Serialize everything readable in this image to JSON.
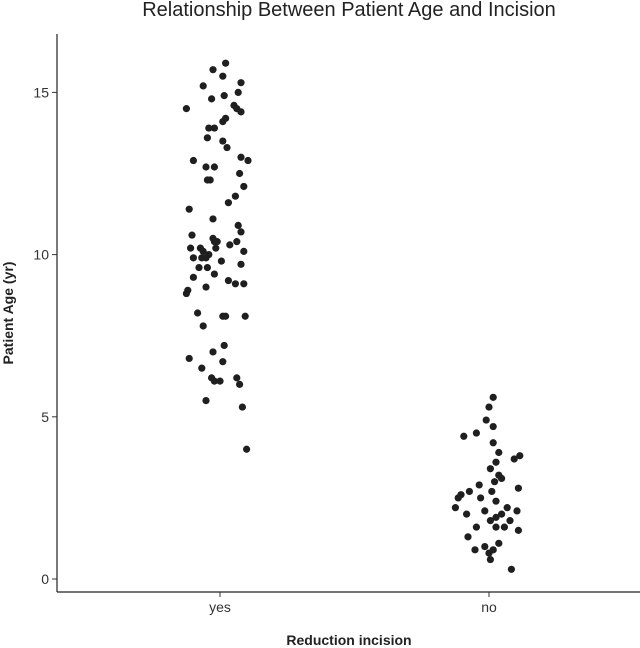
{
  "chart_data": {
    "type": "scatter",
    "title": "Relationship Between Patient Age and Incision",
    "xlabel": "Reduction incision",
    "ylabel": "Patient Age (yr)",
    "categories": [
      "yes",
      "no"
    ],
    "ylim": [
      -0.4,
      16.8
    ],
    "yticks": [
      0,
      5,
      10,
      15
    ],
    "grid": false,
    "legend": "none",
    "point_color": "#1f1f1f",
    "series": [
      {
        "category": "yes",
        "points": [
          {
            "jitter": 0.04,
            "y": 15.9
          },
          {
            "jitter": -0.05,
            "y": 15.7
          },
          {
            "jitter": 0.02,
            "y": 15.5
          },
          {
            "jitter": 0.15,
            "y": 15.3
          },
          {
            "jitter": -0.12,
            "y": 15.2
          },
          {
            "jitter": 0.13,
            "y": 15.0
          },
          {
            "jitter": -0.06,
            "y": 14.8
          },
          {
            "jitter": 0.03,
            "y": 14.9
          },
          {
            "jitter": 0.1,
            "y": 14.6
          },
          {
            "jitter": 0.15,
            "y": 14.4
          },
          {
            "jitter": 0.12,
            "y": 14.5
          },
          {
            "jitter": -0.24,
            "y": 14.5
          },
          {
            "jitter": 0.04,
            "y": 14.2
          },
          {
            "jitter": 0.02,
            "y": 14.1
          },
          {
            "jitter": -0.08,
            "y": 13.9
          },
          {
            "jitter": -0.04,
            "y": 13.9
          },
          {
            "jitter": -0.09,
            "y": 13.6
          },
          {
            "jitter": 0.02,
            "y": 13.5
          },
          {
            "jitter": 0.05,
            "y": 13.3
          },
          {
            "jitter": 0.15,
            "y": 13.0
          },
          {
            "jitter": 0.2,
            "y": 12.9
          },
          {
            "jitter": -0.19,
            "y": 12.9
          },
          {
            "jitter": -0.1,
            "y": 12.7
          },
          {
            "jitter": -0.04,
            "y": 12.7
          },
          {
            "jitter": 0.14,
            "y": 12.5
          },
          {
            "jitter": -0.07,
            "y": 12.3
          },
          {
            "jitter": -0.09,
            "y": 12.3
          },
          {
            "jitter": 0.17,
            "y": 12.1
          },
          {
            "jitter": 0.11,
            "y": 11.8
          },
          {
            "jitter": 0.06,
            "y": 11.6
          },
          {
            "jitter": -0.22,
            "y": 11.4
          },
          {
            "jitter": -0.05,
            "y": 11.1
          },
          {
            "jitter": 0.13,
            "y": 10.9
          },
          {
            "jitter": 0.15,
            "y": 10.7
          },
          {
            "jitter": -0.2,
            "y": 10.6
          },
          {
            "jitter": -0.05,
            "y": 10.5
          },
          {
            "jitter": -0.02,
            "y": 10.4
          },
          {
            "jitter": -0.04,
            "y": 10.4
          },
          {
            "jitter": 0.12,
            "y": 10.4
          },
          {
            "jitter": -0.14,
            "y": 10.2
          },
          {
            "jitter": -0.21,
            "y": 10.2
          },
          {
            "jitter": -0.03,
            "y": 10.2
          },
          {
            "jitter": 0.07,
            "y": 10.3
          },
          {
            "jitter": -0.12,
            "y": 10.1
          },
          {
            "jitter": 0.17,
            "y": 10.1
          },
          {
            "jitter": -0.08,
            "y": 10.0
          },
          {
            "jitter": -0.19,
            "y": 9.9
          },
          {
            "jitter": -0.13,
            "y": 9.9
          },
          {
            "jitter": -0.1,
            "y": 9.9
          },
          {
            "jitter": 0.01,
            "y": 9.8
          },
          {
            "jitter": -0.15,
            "y": 9.6
          },
          {
            "jitter": -0.09,
            "y": 9.6
          },
          {
            "jitter": 0.15,
            "y": 9.7
          },
          {
            "jitter": -0.04,
            "y": 9.4
          },
          {
            "jitter": -0.19,
            "y": 9.3
          },
          {
            "jitter": 0.06,
            "y": 9.2
          },
          {
            "jitter": 0.17,
            "y": 9.1
          },
          {
            "jitter": 0.11,
            "y": 9.1
          },
          {
            "jitter": -0.1,
            "y": 9.0
          },
          {
            "jitter": -0.23,
            "y": 8.9
          },
          {
            "jitter": -0.24,
            "y": 8.8
          },
          {
            "jitter": -0.16,
            "y": 8.2
          },
          {
            "jitter": 0.04,
            "y": 8.1
          },
          {
            "jitter": 0.02,
            "y": 8.1
          },
          {
            "jitter": 0.18,
            "y": 8.1
          },
          {
            "jitter": -0.12,
            "y": 7.8
          },
          {
            "jitter": 0.03,
            "y": 7.2
          },
          {
            "jitter": -0.05,
            "y": 7.0
          },
          {
            "jitter": 0.02,
            "y": 6.7
          },
          {
            "jitter": -0.22,
            "y": 6.8
          },
          {
            "jitter": -0.13,
            "y": 6.5
          },
          {
            "jitter": -0.06,
            "y": 6.2
          },
          {
            "jitter": 0.12,
            "y": 6.2
          },
          {
            "jitter": -0.04,
            "y": 6.1
          },
          {
            "jitter": 0.0,
            "y": 6.1
          },
          {
            "jitter": 0.14,
            "y": 6.0
          },
          {
            "jitter": -0.1,
            "y": 5.5
          },
          {
            "jitter": 0.16,
            "y": 5.3
          },
          {
            "jitter": 0.19,
            "y": 4.0
          }
        ]
      },
      {
        "category": "no",
        "points": [
          {
            "jitter": 0.03,
            "y": 5.6
          },
          {
            "jitter": 0.0,
            "y": 5.3
          },
          {
            "jitter": -0.02,
            "y": 4.9
          },
          {
            "jitter": 0.03,
            "y": 4.7
          },
          {
            "jitter": -0.18,
            "y": 4.4
          },
          {
            "jitter": -0.09,
            "y": 4.5
          },
          {
            "jitter": 0.03,
            "y": 4.2
          },
          {
            "jitter": 0.07,
            "y": 3.9
          },
          {
            "jitter": 0.22,
            "y": 3.8
          },
          {
            "jitter": 0.18,
            "y": 3.7
          },
          {
            "jitter": 0.05,
            "y": 3.6
          },
          {
            "jitter": 0.01,
            "y": 3.4
          },
          {
            "jitter": 0.07,
            "y": 3.2
          },
          {
            "jitter": 0.04,
            "y": 3.0
          },
          {
            "jitter": 0.09,
            "y": 3.1
          },
          {
            "jitter": -0.07,
            "y": 2.9
          },
          {
            "jitter": -0.14,
            "y": 2.7
          },
          {
            "jitter": 0.02,
            "y": 2.7
          },
          {
            "jitter": 0.21,
            "y": 2.8
          },
          {
            "jitter": -0.2,
            "y": 2.6
          },
          {
            "jitter": -0.22,
            "y": 2.5
          },
          {
            "jitter": -0.06,
            "y": 2.5
          },
          {
            "jitter": 0.05,
            "y": 2.4
          },
          {
            "jitter": -0.24,
            "y": 2.2
          },
          {
            "jitter": 0.13,
            "y": 2.2
          },
          {
            "jitter": -0.03,
            "y": 2.1
          },
          {
            "jitter": 0.09,
            "y": 2.0
          },
          {
            "jitter": 0.2,
            "y": 2.1
          },
          {
            "jitter": -0.16,
            "y": 2.0
          },
          {
            "jitter": 0.05,
            "y": 1.9
          },
          {
            "jitter": 0.15,
            "y": 1.8
          },
          {
            "jitter": 0.01,
            "y": 1.8
          },
          {
            "jitter": -0.09,
            "y": 1.6
          },
          {
            "jitter": 0.05,
            "y": 1.6
          },
          {
            "jitter": 0.11,
            "y": 1.6
          },
          {
            "jitter": 0.21,
            "y": 1.5
          },
          {
            "jitter": -0.15,
            "y": 1.3
          },
          {
            "jitter": 0.07,
            "y": 1.1
          },
          {
            "jitter": -0.03,
            "y": 1.0
          },
          {
            "jitter": 0.0,
            "y": 0.8
          },
          {
            "jitter": 0.03,
            "y": 0.9
          },
          {
            "jitter": 0.01,
            "y": 0.6
          },
          {
            "jitter": 0.16,
            "y": 0.3
          },
          {
            "jitter": -0.1,
            "y": 0.9
          }
        ]
      }
    ]
  }
}
